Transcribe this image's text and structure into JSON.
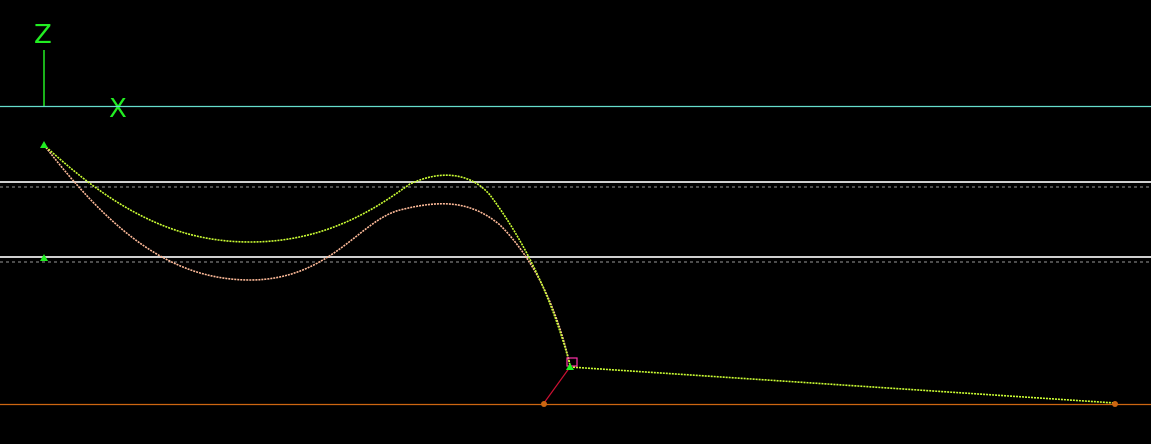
{
  "viewport": {
    "background": "#000000",
    "axes": {
      "vertical_label": "Z",
      "horizontal_label": "X",
      "color": "#22ee22"
    },
    "colors": {
      "reference_line": "#66ddcc",
      "guide_line": "#cfcfcf",
      "ground_line": "#cc6611",
      "curve_upper": "#ccff33",
      "curve_lower": "#ffbb99",
      "control_point": "#22ee22",
      "end_point": "#cc6611",
      "link_line": "#cc1133",
      "marker": "#ff33aa"
    }
  }
}
